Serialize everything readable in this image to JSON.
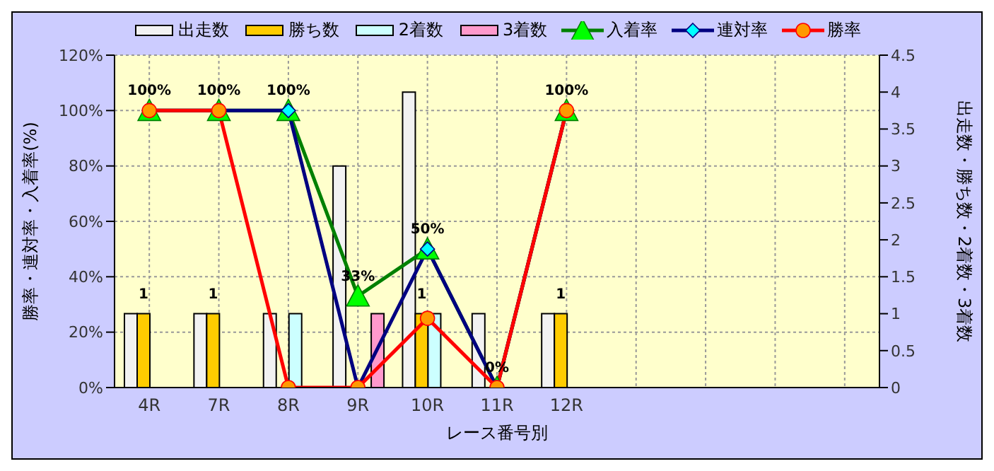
{
  "chart_data": {
    "type": "bar",
    "xlabel": "レース番号別",
    "ylabel": "勝率・連対率・入着率(%)",
    "y2label": "出走数・勝ち数・2着数・3着数",
    "categories": [
      "4R",
      "7R",
      "8R",
      "9R",
      "10R",
      "11R",
      "12R",
      null,
      null,
      null,
      null
    ],
    "series": [
      {
        "name": "出走数",
        "axis": "y2",
        "color": "#f2f2f2",
        "values": [
          1,
          1,
          1,
          3,
          4,
          1,
          1,
          null,
          null,
          null,
          null
        ]
      },
      {
        "name": "勝ち数",
        "axis": "y2",
        "color": "#ffcc00",
        "values": [
          1,
          1,
          0,
          0,
          1,
          0,
          1,
          null,
          null,
          null,
          null
        ],
        "value_labels": [
          "1",
          "1",
          null,
          null,
          "1",
          null,
          "1",
          null,
          null,
          null,
          null
        ]
      },
      {
        "name": "2着数",
        "axis": "y2",
        "color": "#ccffff",
        "values": [
          0,
          0,
          1,
          0,
          1,
          0,
          0,
          null,
          null,
          null,
          null
        ]
      },
      {
        "name": "3着数",
        "axis": "y2",
        "color": "#ff99cc",
        "values": [
          0,
          0,
          0,
          1,
          0,
          0,
          0,
          null,
          null,
          null,
          null
        ]
      },
      {
        "name": "入着率",
        "type": "line",
        "color": "#008000",
        "marker": "triangle",
        "values": [
          100,
          100,
          100,
          33,
          50,
          0,
          100,
          null,
          null,
          null,
          null
        ],
        "value_labels": [
          "100%",
          "100%",
          "100%",
          "33%",
          "50%",
          "0%",
          "100%",
          null,
          null,
          null,
          null
        ]
      },
      {
        "name": "連対率",
        "type": "line",
        "color": "#000080",
        "marker": "diamond",
        "values": [
          100,
          100,
          100,
          0,
          50,
          0,
          100,
          null,
          null,
          null,
          null
        ]
      },
      {
        "name": "勝率",
        "type": "line",
        "color": "#ff0000",
        "marker": "circle",
        "values": [
          100,
          100,
          0,
          0,
          25,
          0,
          100,
          null,
          null,
          null,
          null
        ]
      }
    ],
    "ylim": [
      0,
      120
    ],
    "yticks": [
      {
        "value": 0,
        "label": "0%"
      },
      {
        "value": 20,
        "label": "20%"
      },
      {
        "value": 40,
        "label": "40%"
      },
      {
        "value": 60,
        "label": "60%"
      },
      {
        "value": 80,
        "label": "80%"
      },
      {
        "value": 100,
        "label": "100%"
      },
      {
        "value": 120,
        "label": "120%"
      }
    ],
    "y2lim": [
      0,
      4.5
    ],
    "y2ticks": [
      0,
      0.5,
      1,
      1.5,
      2,
      2.5,
      3,
      3.5,
      4,
      4.5
    ],
    "grid": true,
    "legend": "top"
  }
}
